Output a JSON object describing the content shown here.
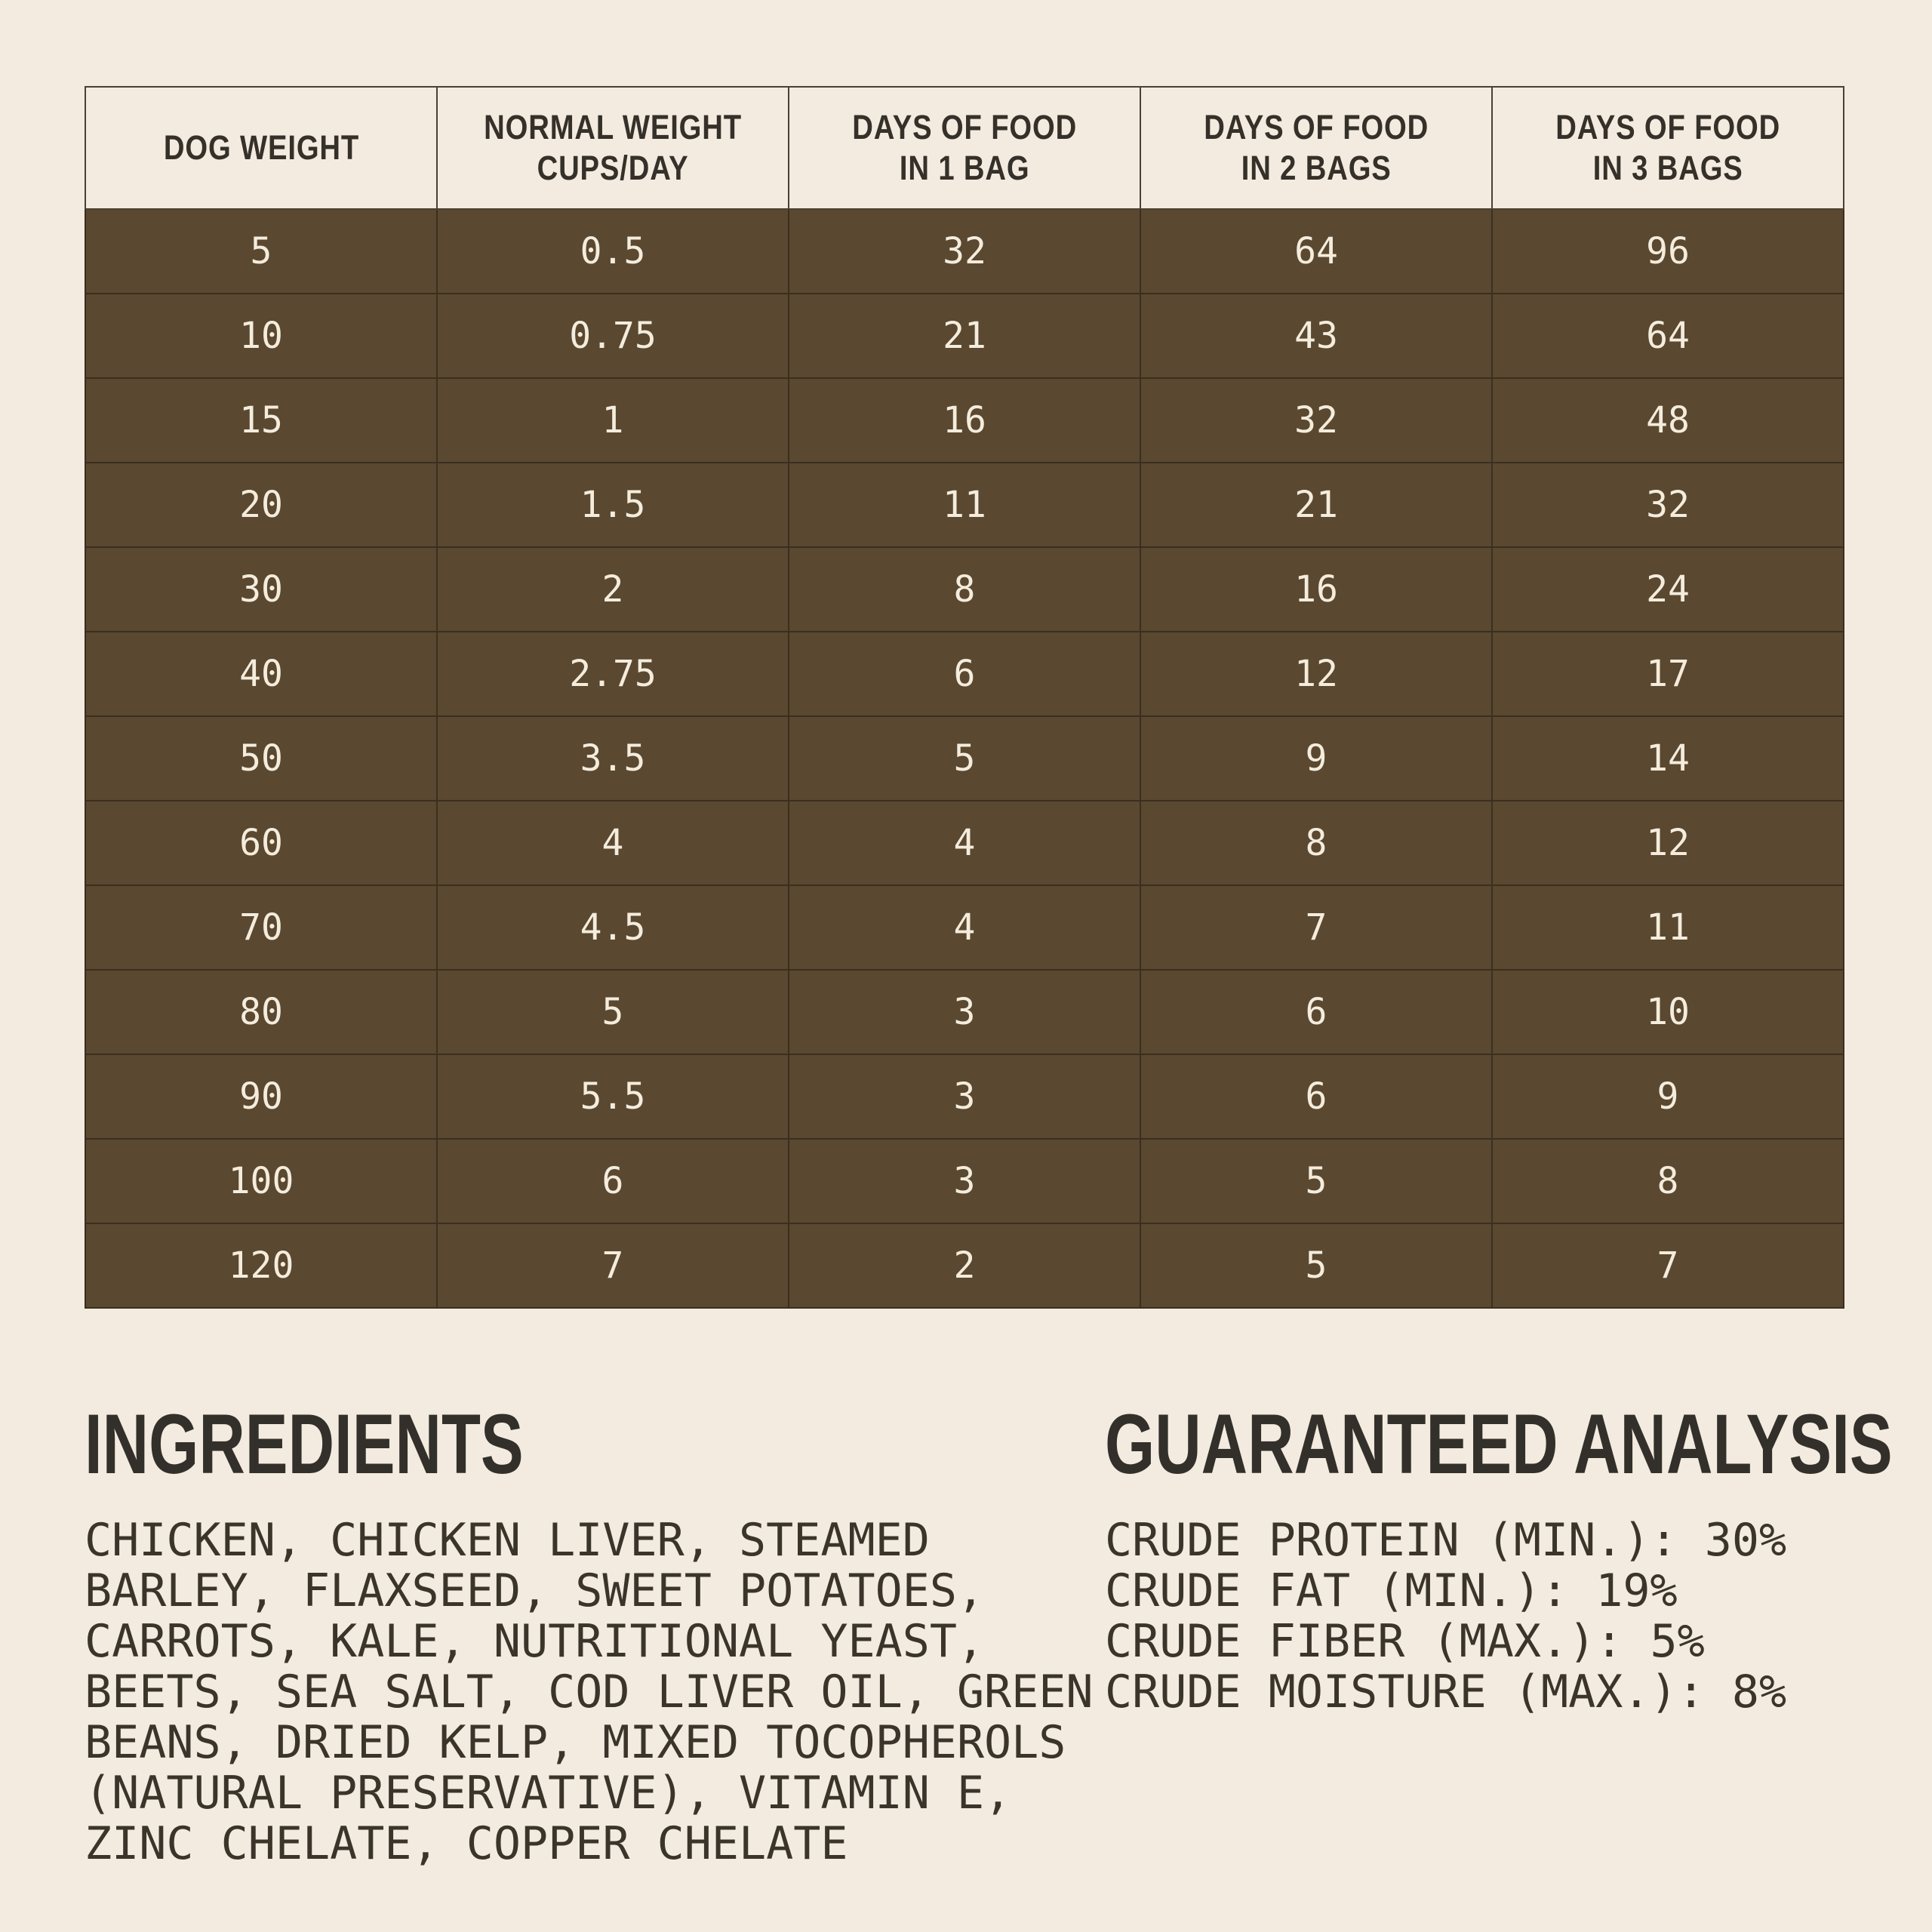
{
  "colors": {
    "background_cream": "#f3ebdf",
    "row_brown": "#5a4830",
    "row_text_cream": "#f4ecdc",
    "border_dark": "#3a2f1f",
    "heading_dark": "#33302b"
  },
  "table": {
    "headers": [
      "DOG WEIGHT",
      "NORMAL WEIGHT\nCUPS/DAY",
      "DAYS OF FOOD\nIN 1 BAG",
      "DAYS OF FOOD\nIN 2 BAGS",
      "DAYS OF FOOD\nIN 3 BAGS"
    ],
    "rows": [
      [
        "5",
        "0.5",
        "32",
        "64",
        "96"
      ],
      [
        "10",
        "0.75",
        "21",
        "43",
        "64"
      ],
      [
        "15",
        "1",
        "16",
        "32",
        "48"
      ],
      [
        "20",
        "1.5",
        "11",
        "21",
        "32"
      ],
      [
        "30",
        "2",
        "8",
        "16",
        "24"
      ],
      [
        "40",
        "2.75",
        "6",
        "12",
        "17"
      ],
      [
        "50",
        "3.5",
        "5",
        "9",
        "14"
      ],
      [
        "60",
        "4",
        "4",
        "8",
        "12"
      ],
      [
        "70",
        "4.5",
        "4",
        "7",
        "11"
      ],
      [
        "80",
        "5",
        "3",
        "6",
        "10"
      ],
      [
        "90",
        "5.5",
        "3",
        "6",
        "9"
      ],
      [
        "100",
        "6",
        "3",
        "5",
        "8"
      ],
      [
        "120",
        "7",
        "2",
        "5",
        "7"
      ]
    ]
  },
  "ingredients": {
    "title": "INGREDIENTS",
    "text": "CHICKEN, CHICKEN LIVER, STEAMED\nBARLEY, FLAXSEED, SWEET POTATOES,\nCARROTS, KALE, NUTRITIONAL YEAST,\nBEETS, SEA SALT, COD LIVER OIL, GREEN\nBEANS, DRIED KELP, MIXED TOCOPHEROLS\n(NATURAL PRESERVATIVE), VITAMIN E,\nZINC CHELATE, COPPER CHELATE"
  },
  "analysis": {
    "title": "GUARANTEED ANALYSIS",
    "items": [
      "CRUDE PROTEIN (MIN.): 30%",
      "CRUDE FAT (MIN.): 19%",
      "CRUDE FIBER (MAX.): 5%",
      "CRUDE MOISTURE (MAX.): 8%"
    ]
  }
}
